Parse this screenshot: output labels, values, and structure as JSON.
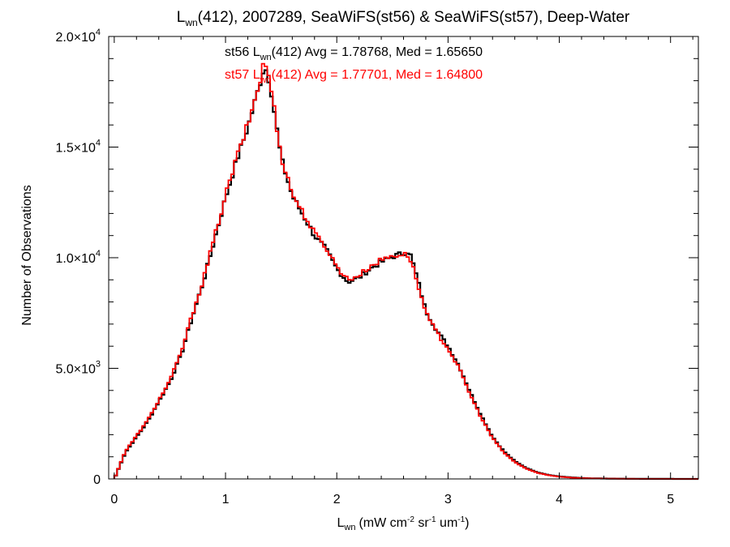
{
  "chart_data": {
    "type": "line",
    "step": true,
    "title": {
      "prefix": "L",
      "prefix_sub": "wn",
      "rest": "(412), 2007289, SeaWiFS(st56) & SeaWiFS(st57), Deep-Water"
    },
    "xlabel": {
      "main": "L",
      "sub": "wn",
      "units": "(mW cm",
      "sup1": "-2",
      "mid": " sr",
      "sup2": "-1",
      "mid2": " um",
      "sup3": "-1",
      "end": ")"
    },
    "ylabel": "Number of Observations",
    "xlim": [
      -0.05,
      5.25
    ],
    "ylim": [
      0,
      20000
    ],
    "xticks": [
      {
        "value": 0,
        "label": "0"
      },
      {
        "value": 1,
        "label": "1"
      },
      {
        "value": 2,
        "label": "2"
      },
      {
        "value": 3,
        "label": "3"
      },
      {
        "value": 4,
        "label": "4"
      },
      {
        "value": 5,
        "label": "5"
      }
    ],
    "yticks": [
      {
        "value": 0,
        "mant": "0",
        "exp": ""
      },
      {
        "value": 5000,
        "mant": "5.0×10",
        "exp": "3"
      },
      {
        "value": 10000,
        "mant": "1.0×10",
        "exp": "4"
      },
      {
        "value": 15000,
        "mant": "1.5×10",
        "exp": "4"
      },
      {
        "value": 20000,
        "mant": "2.0×10",
        "exp": "4"
      }
    ],
    "grid": false,
    "annotations": [
      {
        "series": "st56",
        "color": "#000000",
        "pre": "st56 L",
        "sub": "wn",
        "post": "(412) Avg = 1.78768, Med = 1.65650"
      },
      {
        "series": "st57",
        "color": "#ff0000",
        "pre": "st57 L",
        "sub": "wn",
        "post": "(412) Avg = 1.77701, Med = 1.64800"
      }
    ],
    "series": [
      {
        "name": "st56",
        "color": "#000000",
        "x": [
          0.0,
          0.1,
          0.2,
          0.3,
          0.4,
          0.5,
          0.6,
          0.7,
          0.8,
          0.9,
          1.0,
          1.1,
          1.2,
          1.3,
          1.35,
          1.4,
          1.5,
          1.6,
          1.7,
          1.8,
          1.9,
          2.0,
          2.1,
          2.2,
          2.3,
          2.4,
          2.5,
          2.6,
          2.65,
          2.7,
          2.8,
          2.9,
          3.0,
          3.1,
          3.2,
          3.3,
          3.4,
          3.5,
          3.6,
          3.7,
          3.8,
          3.9,
          4.0,
          4.1,
          4.2,
          4.3,
          4.5,
          4.7,
          5.0,
          5.25
        ],
        "y": [
          0,
          1200,
          1900,
          2600,
          3500,
          4400,
          5600,
          7300,
          8900,
          10800,
          12700,
          14400,
          15900,
          17700,
          18700,
          17900,
          14500,
          12800,
          11900,
          11000,
          10400,
          9500,
          8900,
          9100,
          9500,
          9800,
          10050,
          10200,
          10300,
          9500,
          7600,
          6700,
          6000,
          5100,
          3900,
          2850,
          1900,
          1250,
          800,
          500,
          300,
          180,
          110,
          70,
          40,
          25,
          12,
          6,
          2,
          0
        ]
      },
      {
        "name": "st57",
        "color": "#ff0000",
        "x": [
          0.0,
          0.1,
          0.2,
          0.3,
          0.4,
          0.5,
          0.6,
          0.7,
          0.8,
          0.9,
          1.0,
          1.1,
          1.2,
          1.3,
          1.35,
          1.4,
          1.5,
          1.6,
          1.7,
          1.8,
          1.9,
          2.0,
          2.1,
          2.2,
          2.3,
          2.4,
          2.5,
          2.6,
          2.65,
          2.7,
          2.8,
          2.9,
          3.0,
          3.1,
          3.2,
          3.3,
          3.4,
          3.5,
          3.6,
          3.7,
          3.8,
          3.9,
          4.0,
          4.1,
          4.2,
          4.3,
          4.5,
          4.7,
          5.0,
          5.25
        ],
        "y": [
          0,
          1250,
          1950,
          2650,
          3550,
          4450,
          5700,
          7400,
          9000,
          10900,
          12800,
          14500,
          16000,
          17800,
          18900,
          18000,
          14600,
          12900,
          12000,
          11100,
          10500,
          9600,
          9000,
          9200,
          9600,
          9900,
          10100,
          10150,
          10100,
          9300,
          7500,
          6600,
          5900,
          5000,
          3800,
          2750,
          1850,
          1200,
          760,
          470,
          280,
          170,
          100,
          60,
          35,
          20,
          10,
          5,
          2,
          0
        ]
      }
    ]
  }
}
